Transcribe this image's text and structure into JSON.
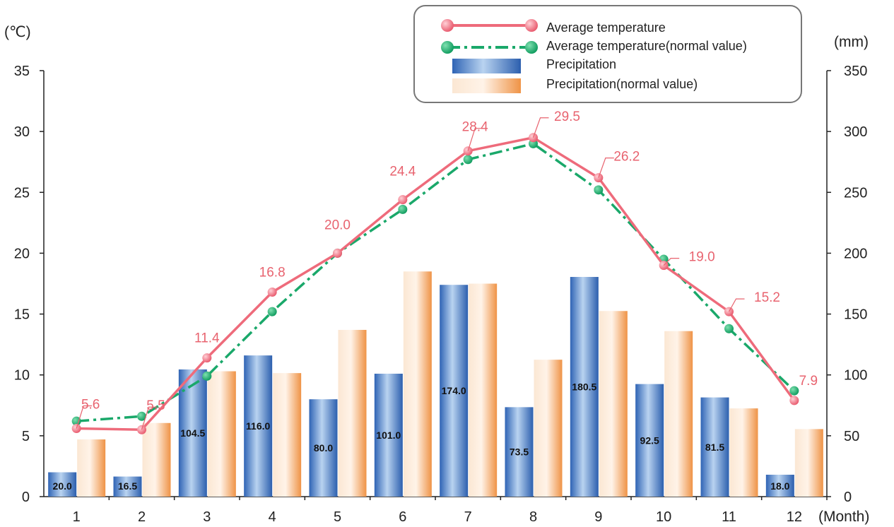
{
  "chart_data": {
    "type": "bar",
    "categories": [
      "1",
      "2",
      "3",
      "4",
      "5",
      "6",
      "7",
      "8",
      "9",
      "10",
      "11",
      "12"
    ],
    "xlabel": "(Month)",
    "y_left_label": "(℃)",
    "y_right_label": "(mm)",
    "y_left_range": [
      0,
      35
    ],
    "y_left_ticks": [
      0,
      5,
      10,
      15,
      20,
      25,
      30,
      35
    ],
    "y_right_range": [
      0,
      350
    ],
    "y_right_ticks": [
      0,
      50,
      100,
      150,
      200,
      250,
      300,
      350
    ],
    "legend_position": "top-right",
    "grid": false,
    "series": [
      {
        "name": "Average temperature",
        "kind": "line",
        "axis": "left",
        "color": "#ee6b7b",
        "values": [
          5.6,
          5.5,
          11.4,
          16.8,
          20.0,
          24.4,
          28.4,
          29.5,
          26.2,
          19.0,
          15.2,
          7.9
        ],
        "labels": [
          "5.6",
          "5.5",
          "11.4",
          "16.8",
          "20.0",
          "24.4",
          "28.4",
          "29.5",
          "26.2",
          "19.0",
          "15.2",
          "7.9"
        ]
      },
      {
        "name": "Average temperature(normal value)",
        "kind": "dashdot-line",
        "axis": "left",
        "color": "#1aa86a",
        "values": [
          6.2,
          6.6,
          9.9,
          15.2,
          20.0,
          23.6,
          27.7,
          29.0,
          25.2,
          19.5,
          13.8,
          8.7
        ]
      },
      {
        "name": "Precipitation",
        "kind": "bar",
        "axis": "right",
        "color": "#3b7cc9",
        "values": [
          20.0,
          16.5,
          104.5,
          116.0,
          80.0,
          101.0,
          174.0,
          73.5,
          180.5,
          92.5,
          81.5,
          18.0
        ],
        "labels": [
          "20.0",
          "16.5",
          "104.5",
          "116.0",
          "80.0",
          "101.0",
          "174.0",
          "73.5",
          "180.5",
          "92.5",
          "81.5",
          "18.0"
        ]
      },
      {
        "name": "Precipitation(normal value)",
        "kind": "bar",
        "axis": "right",
        "color": "#f2a35c",
        "values": [
          47.0,
          60.5,
          103.0,
          101.5,
          137.0,
          185.0,
          175.0,
          112.5,
          152.5,
          136.0,
          72.5,
          55.5
        ]
      }
    ]
  }
}
